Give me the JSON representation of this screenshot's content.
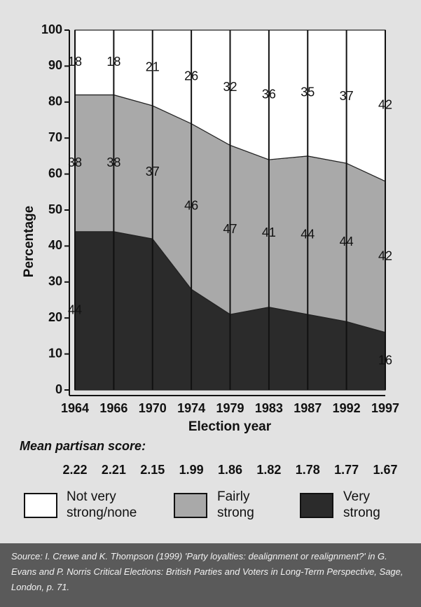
{
  "chart_data": {
    "type": "stacked_area",
    "categories": [
      "1964",
      "1966",
      "1970",
      "1974",
      "1979",
      "1983",
      "1987",
      "1992",
      "1997"
    ],
    "series": [
      {
        "name": "Not very strong/none",
        "color": "#ffffff",
        "values": [
          18,
          18,
          21,
          26,
          32,
          36,
          35,
          37,
          42
        ]
      },
      {
        "name": "Fairly strong",
        "color": "#a9a9a9",
        "values": [
          38,
          38,
          37,
          46,
          47,
          41,
          44,
          44,
          42
        ]
      },
      {
        "name": "Very strong",
        "color": "#2b2b2b",
        "values": [
          44,
          44,
          42,
          28,
          21,
          23,
          21,
          19,
          16
        ],
        "value_labels": [
          "44",
          null,
          null,
          null,
          null,
          null,
          null,
          null,
          "16"
        ]
      }
    ],
    "ylim": [
      0,
      100
    ],
    "yticks": [
      0,
      10,
      20,
      30,
      40,
      50,
      60,
      70,
      80,
      90,
      100
    ],
    "ylabel": "Percentage",
    "xlabel": "Election year",
    "score_title": "Mean partisan score:",
    "scores": [
      2.22,
      2.21,
      2.15,
      1.99,
      1.86,
      1.82,
      1.78,
      1.77,
      1.67
    ],
    "source": "Source: I. Crewe and K. Thompson (1999) 'Party loyalties: dealignment or realignment?' in G. Evans and P. Norris Critical Elections: British Parties and Voters in Long-Term Perspective, Sage, London, p. 71."
  }
}
